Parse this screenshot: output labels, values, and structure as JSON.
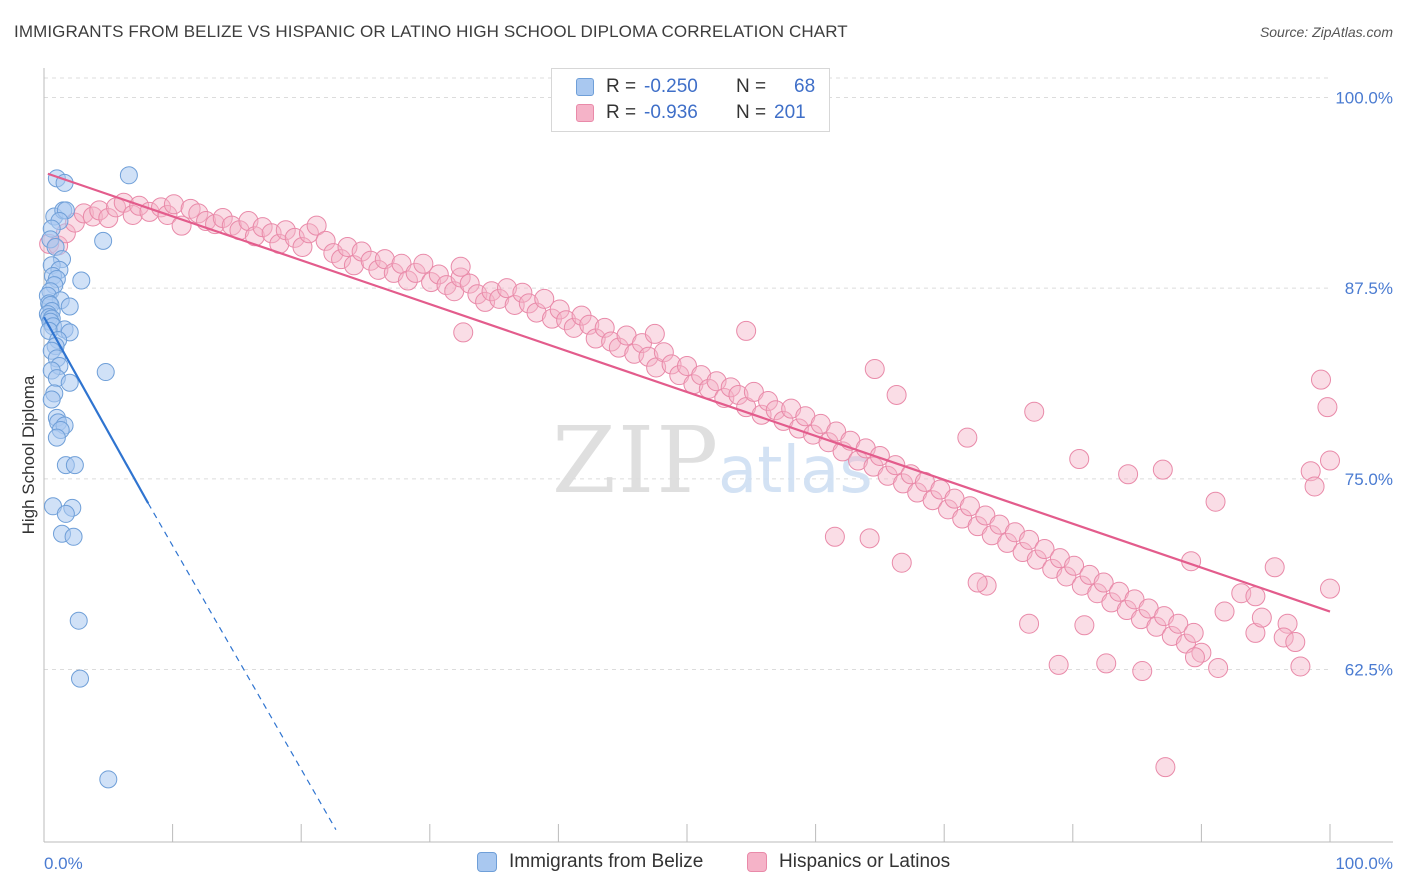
{
  "title": "IMMIGRANTS FROM BELIZE VS HISPANIC OR LATINO HIGH SCHOOL DIPLOMA CORRELATION CHART",
  "source": "Source: ZipAtlas.com",
  "watermark": {
    "zip": "ZIP",
    "atlas": "atlas"
  },
  "legend": {
    "series1": {
      "r_label": "R =",
      "r_value": "-0.250",
      "n_label": "N =",
      "n_value": "68"
    },
    "series2": {
      "r_label": "R =",
      "r_value": "-0.936",
      "n_label": "N =",
      "n_value": "201"
    }
  },
  "bottom_legend": {
    "series1": "Immigrants from Belize",
    "series2": "Hispanics or Latinos"
  },
  "colors": {
    "blue_fill": "#a9c8f0",
    "blue_stroke": "#6f9fd8",
    "blue_line": "#2f74d0",
    "pink_fill": "#f5b3c8",
    "pink_stroke": "#e98aa9",
    "pink_line": "#e35c8c",
    "grid": "#dcdcdc",
    "tick_text": "#4a7bd1"
  },
  "chart_data": {
    "type": "scatter",
    "title": "IMMIGRANTS FROM BELIZE VS HISPANIC OR LATINO HIGH SCHOOL DIPLOMA CORRELATION CHART",
    "xlabel": "",
    "ylabel": "High School Diploma",
    "xlim": [
      0,
      100
    ],
    "ylim": [
      52,
      101.5
    ],
    "x_tick_labels": [
      "0.0%",
      "100.0%"
    ],
    "y_ticks": [
      {
        "value": 100,
        "label": "100.0%"
      },
      {
        "value": 87.5,
        "label": "87.5%"
      },
      {
        "value": 75,
        "label": "75.0%"
      },
      {
        "value": 62.5,
        "label": "62.5%"
      }
    ],
    "x_minor_ticks": [
      0,
      10,
      20,
      30,
      40,
      50,
      60,
      70,
      80,
      90,
      100
    ],
    "series": [
      {
        "name": "Immigrants from Belize",
        "color": "#a9c8f0",
        "trend": {
          "x0": 0,
          "y0": 85.6,
          "x1": 8.1,
          "y1": 73.4,
          "dash_to_x": 22.7,
          "dash_to_y": 52
        },
        "points": [
          [
            1.0,
            94.7
          ],
          [
            1.6,
            94.4
          ],
          [
            6.6,
            94.9
          ],
          [
            0.8,
            92.2
          ],
          [
            1.5,
            92.6
          ],
          [
            1.7,
            92.6
          ],
          [
            1.2,
            91.9
          ],
          [
            0.6,
            91.4
          ],
          [
            0.5,
            90.7
          ],
          [
            4.6,
            90.6
          ],
          [
            0.9,
            90.2
          ],
          [
            1.4,
            89.4
          ],
          [
            0.6,
            89.0
          ],
          [
            1.2,
            88.7
          ],
          [
            0.7,
            88.3
          ],
          [
            1.0,
            88.1
          ],
          [
            2.9,
            88.0
          ],
          [
            0.8,
            87.7
          ],
          [
            0.5,
            87.3
          ],
          [
            0.3,
            87.0
          ],
          [
            1.3,
            86.7
          ],
          [
            0.4,
            86.5
          ],
          [
            0.5,
            86.4
          ],
          [
            2.0,
            86.3
          ],
          [
            0.6,
            86.0
          ],
          [
            0.3,
            85.8
          ],
          [
            0.4,
            85.6
          ],
          [
            0.6,
            85.5
          ],
          [
            0.5,
            85.3
          ],
          [
            0.7,
            85.0
          ],
          [
            0.4,
            84.7
          ],
          [
            1.6,
            84.8
          ],
          [
            2.0,
            84.6
          ],
          [
            1.1,
            84.1
          ],
          [
            0.9,
            83.7
          ],
          [
            0.6,
            83.4
          ],
          [
            1.0,
            82.9
          ],
          [
            1.2,
            82.4
          ],
          [
            0.6,
            82.1
          ],
          [
            4.8,
            82.0
          ],
          [
            1.0,
            81.6
          ],
          [
            2.0,
            81.3
          ],
          [
            0.8,
            80.6
          ],
          [
            0.6,
            80.2
          ],
          [
            1.0,
            79.0
          ],
          [
            1.1,
            78.7
          ],
          [
            1.6,
            78.5
          ],
          [
            1.3,
            78.2
          ],
          [
            1.0,
            77.7
          ],
          [
            1.7,
            75.9
          ],
          [
            2.4,
            75.9
          ],
          [
            0.7,
            73.2
          ],
          [
            2.2,
            73.1
          ],
          [
            1.7,
            72.7
          ],
          [
            1.4,
            71.4
          ],
          [
            2.3,
            71.2
          ],
          [
            2.7,
            65.7
          ],
          [
            2.8,
            61.9
          ],
          [
            5.0,
            55.3
          ]
        ]
      },
      {
        "name": "Hispanics or Latinos",
        "color": "#f5b3c8",
        "trend": {
          "x0": 0.3,
          "y0": 95.0,
          "x1": 100,
          "y1": 66.3
        },
        "points": [
          [
            0.4,
            90.4
          ],
          [
            1.1,
            90.3
          ],
          [
            1.7,
            91.1
          ],
          [
            2.4,
            91.8
          ],
          [
            3.1,
            92.4
          ],
          [
            3.8,
            92.2
          ],
          [
            4.3,
            92.6
          ],
          [
            5.0,
            92.1
          ],
          [
            5.6,
            92.8
          ],
          [
            6.2,
            93.1
          ],
          [
            6.9,
            92.3
          ],
          [
            7.4,
            92.9
          ],
          [
            8.2,
            92.5
          ],
          [
            9.1,
            92.8
          ],
          [
            9.6,
            92.3
          ],
          [
            10.1,
            93.0
          ],
          [
            10.7,
            91.6
          ],
          [
            11.4,
            92.7
          ],
          [
            12.0,
            92.4
          ],
          [
            12.6,
            91.9
          ],
          [
            13.3,
            91.7
          ],
          [
            13.9,
            92.1
          ],
          [
            14.6,
            91.6
          ],
          [
            15.2,
            91.3
          ],
          [
            15.9,
            91.9
          ],
          [
            16.4,
            90.9
          ],
          [
            17.0,
            91.5
          ],
          [
            17.7,
            91.1
          ],
          [
            18.3,
            90.4
          ],
          [
            18.8,
            91.3
          ],
          [
            19.5,
            90.8
          ],
          [
            20.1,
            90.2
          ],
          [
            20.6,
            91.1
          ],
          [
            21.2,
            91.6
          ],
          [
            21.9,
            90.6
          ],
          [
            22.5,
            89.8
          ],
          [
            23.1,
            89.4
          ],
          [
            23.6,
            90.2
          ],
          [
            24.1,
            89.0
          ],
          [
            24.7,
            89.9
          ],
          [
            25.4,
            89.3
          ],
          [
            26.0,
            88.7
          ],
          [
            26.5,
            89.4
          ],
          [
            27.2,
            88.5
          ],
          [
            27.8,
            89.1
          ],
          [
            28.3,
            88.0
          ],
          [
            28.9,
            88.5
          ],
          [
            29.5,
            89.1
          ],
          [
            30.1,
            87.9
          ],
          [
            30.7,
            88.4
          ],
          [
            31.3,
            87.7
          ],
          [
            31.9,
            87.3
          ],
          [
            32.4,
            88.2
          ],
          [
            33.1,
            87.8
          ],
          [
            33.7,
            87.1
          ],
          [
            34.3,
            86.6
          ],
          [
            34.8,
            87.3
          ],
          [
            35.4,
            86.8
          ],
          [
            36.0,
            87.5
          ],
          [
            36.6,
            86.4
          ],
          [
            37.2,
            87.2
          ],
          [
            37.7,
            86.5
          ],
          [
            38.3,
            85.9
          ],
          [
            38.9,
            86.8
          ],
          [
            39.5,
            85.5
          ],
          [
            40.1,
            86.1
          ],
          [
            40.6,
            85.4
          ],
          [
            41.2,
            84.9
          ],
          [
            41.8,
            85.7
          ],
          [
            42.4,
            85.1
          ],
          [
            42.9,
            84.2
          ],
          [
            43.6,
            84.9
          ],
          [
            44.1,
            84.0
          ],
          [
            44.7,
            83.6
          ],
          [
            45.3,
            84.4
          ],
          [
            45.9,
            83.2
          ],
          [
            46.5,
            83.9
          ],
          [
            47.0,
            83.0
          ],
          [
            47.6,
            82.3
          ],
          [
            48.2,
            83.3
          ],
          [
            48.8,
            82.5
          ],
          [
            49.4,
            81.8
          ],
          [
            50.0,
            82.4
          ],
          [
            50.5,
            81.2
          ],
          [
            51.1,
            81.8
          ],
          [
            51.7,
            80.9
          ],
          [
            52.3,
            81.4
          ],
          [
            52.9,
            80.3
          ],
          [
            53.4,
            81.0
          ],
          [
            54.0,
            80.5
          ],
          [
            54.6,
            79.7
          ],
          [
            55.2,
            80.7
          ],
          [
            55.8,
            79.2
          ],
          [
            56.3,
            80.1
          ],
          [
            56.9,
            79.5
          ],
          [
            57.5,
            78.8
          ],
          [
            58.1,
            79.6
          ],
          [
            58.7,
            78.3
          ],
          [
            59.2,
            79.1
          ],
          [
            59.8,
            77.9
          ],
          [
            60.4,
            78.6
          ],
          [
            61.0,
            77.4
          ],
          [
            61.6,
            78.1
          ],
          [
            62.1,
            76.8
          ],
          [
            62.7,
            77.5
          ],
          [
            63.3,
            76.2
          ],
          [
            63.9,
            77.0
          ],
          [
            64.5,
            75.8
          ],
          [
            65.0,
            76.5
          ],
          [
            65.6,
            75.2
          ],
          [
            66.2,
            75.9
          ],
          [
            66.8,
            74.7
          ],
          [
            67.4,
            75.3
          ],
          [
            67.9,
            74.1
          ],
          [
            68.5,
            74.8
          ],
          [
            69.1,
            73.6
          ],
          [
            69.7,
            74.3
          ],
          [
            70.3,
            73.0
          ],
          [
            70.8,
            73.7
          ],
          [
            71.4,
            72.4
          ],
          [
            72.0,
            73.2
          ],
          [
            72.6,
            71.9
          ],
          [
            73.2,
            72.6
          ],
          [
            73.7,
            71.3
          ],
          [
            74.3,
            72.0
          ],
          [
            74.9,
            70.8
          ],
          [
            75.5,
            71.5
          ],
          [
            76.1,
            70.2
          ],
          [
            76.6,
            71.0
          ],
          [
            77.2,
            69.7
          ],
          [
            77.8,
            70.4
          ],
          [
            78.4,
            69.1
          ],
          [
            79.0,
            69.8
          ],
          [
            79.5,
            68.6
          ],
          [
            80.1,
            69.3
          ],
          [
            80.7,
            68.0
          ],
          [
            81.3,
            68.7
          ],
          [
            81.9,
            67.5
          ],
          [
            82.4,
            68.2
          ],
          [
            83.0,
            66.9
          ],
          [
            83.6,
            67.6
          ],
          [
            84.2,
            66.4
          ],
          [
            84.8,
            67.1
          ],
          [
            85.3,
            65.8
          ],
          [
            85.9,
            66.5
          ],
          [
            86.5,
            65.3
          ],
          [
            87.1,
            66.0
          ],
          [
            87.7,
            64.7
          ],
          [
            88.2,
            65.5
          ],
          [
            88.8,
            64.2
          ],
          [
            89.4,
            64.9
          ],
          [
            90.0,
            63.6
          ],
          [
            47.5,
            84.5
          ],
          [
            32.6,
            84.6
          ],
          [
            54.6,
            84.7
          ],
          [
            32.4,
            88.9
          ],
          [
            64.6,
            82.2
          ],
          [
            66.3,
            80.5
          ],
          [
            77.0,
            79.4
          ],
          [
            71.8,
            77.7
          ],
          [
            80.5,
            76.3
          ],
          [
            84.3,
            75.3
          ],
          [
            87.0,
            75.6
          ],
          [
            99.3,
            81.5
          ],
          [
            99.8,
            79.7
          ],
          [
            100.0,
            76.2
          ],
          [
            98.5,
            75.5
          ],
          [
            98.8,
            74.5
          ],
          [
            91.1,
            73.5
          ],
          [
            94.2,
            64.9
          ],
          [
            94.7,
            65.9
          ],
          [
            96.7,
            65.5
          ],
          [
            96.4,
            64.6
          ],
          [
            97.3,
            64.3
          ],
          [
            97.7,
            62.7
          ],
          [
            91.3,
            62.6
          ],
          [
            89.5,
            63.3
          ],
          [
            85.4,
            62.4
          ],
          [
            78.9,
            62.8
          ],
          [
            82.6,
            62.9
          ],
          [
            76.6,
            65.5
          ],
          [
            80.9,
            65.4
          ],
          [
            91.8,
            66.3
          ],
          [
            93.1,
            67.5
          ],
          [
            100.0,
            67.8
          ],
          [
            94.2,
            67.3
          ],
          [
            89.2,
            69.6
          ],
          [
            95.7,
            69.2
          ],
          [
            87.2,
            56.1
          ],
          [
            61.5,
            71.2
          ],
          [
            64.2,
            71.1
          ],
          [
            66.7,
            69.5
          ],
          [
            73.3,
            68.0
          ],
          [
            72.6,
            68.2
          ]
        ]
      }
    ]
  }
}
